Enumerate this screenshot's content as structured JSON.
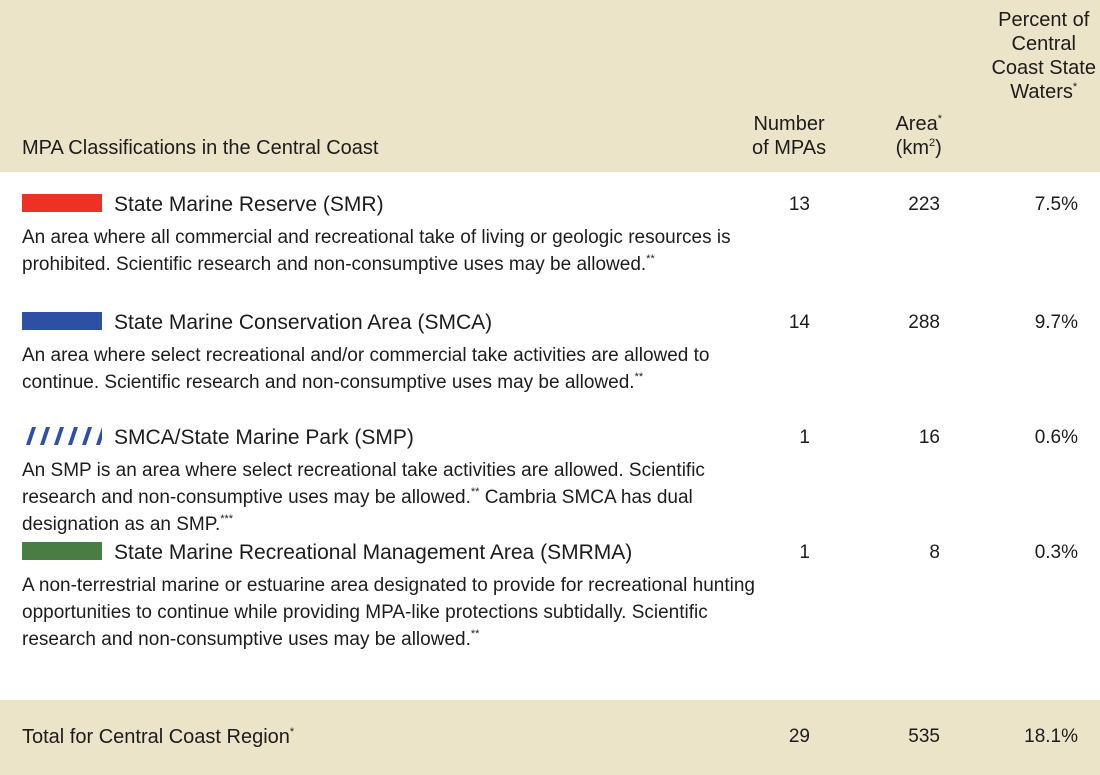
{
  "table": {
    "header": [
      [
        {
          "text": "MPA Classifications in the Central Coast"
        }
      ],
      [
        {
          "text": "Number"
        },
        {
          "br": true
        },
        {
          "text": "of MPAs"
        }
      ],
      [
        {
          "text": "Area"
        },
        {
          "sup": "*"
        },
        {
          "br": true
        },
        {
          "text": "(km"
        },
        {
          "sup": "2"
        },
        {
          "text": ")"
        }
      ],
      [
        {
          "text": "Percent of"
        },
        {
          "br": true
        },
        {
          "text": "Central"
        },
        {
          "br": true
        },
        {
          "text": "Coast State"
        },
        {
          "br": true
        },
        {
          "text": "Waters"
        },
        {
          "sup": "*"
        }
      ]
    ],
    "rows": [
      {
        "color": "#ee3124",
        "pattern": "solid",
        "name": "State Marine Reserve (SMR)",
        "description": [
          {
            "text": "An area where all commercial and recreational take of living or geologic resources is prohibited. Scientific research and non-consumptive uses may be allowed."
          },
          {
            "sup": "**"
          }
        ],
        "count": "13",
        "area": "223",
        "percent": "7.5%"
      },
      {
        "color": "#2d50a5",
        "pattern": "solid",
        "name": "State Marine Conservation Area (SMCA)",
        "description": [
          {
            "text": "An area where select recreational and/or commercial take activities are allowed to continue. Scientific research and non-consumptive uses may be allowed."
          },
          {
            "sup": "**"
          }
        ],
        "count": "14",
        "area": "288",
        "percent": "9.7%"
      },
      {
        "color": "#2d50a5",
        "pattern": "hatched",
        "name": "SMCA/State Marine Park (SMP)",
        "description": [
          {
            "text": "An SMP is an area where select recreational take activities are allowed. Scientific research and non-consumptive uses may be allowed."
          },
          {
            "sup": "**"
          },
          {
            "text": " Cambria SMCA has dual designation as an SMP."
          },
          {
            "sup": "***"
          }
        ],
        "count": "1",
        "area": "16",
        "percent": "0.6%"
      },
      {
        "color": "#4a7d43",
        "pattern": "solid",
        "name": "State Marine Recreational Management Area (SMRMA)",
        "description": [
          {
            "text": "A non-terrestrial marine or estuarine area designated to provide for recreational hunting opportunities to continue while providing MPA-like protections subtidally. Scientific research and non-consumptive uses may be allowed."
          },
          {
            "sup": "**"
          }
        ],
        "count": "1",
        "area": "8",
        "percent": "0.3%"
      }
    ],
    "total": {
      "label": [
        {
          "text": "Total for Central Coast Region"
        },
        {
          "sup": "*"
        }
      ],
      "count": "29",
      "area": "535",
      "percent": "18.1%"
    }
  }
}
